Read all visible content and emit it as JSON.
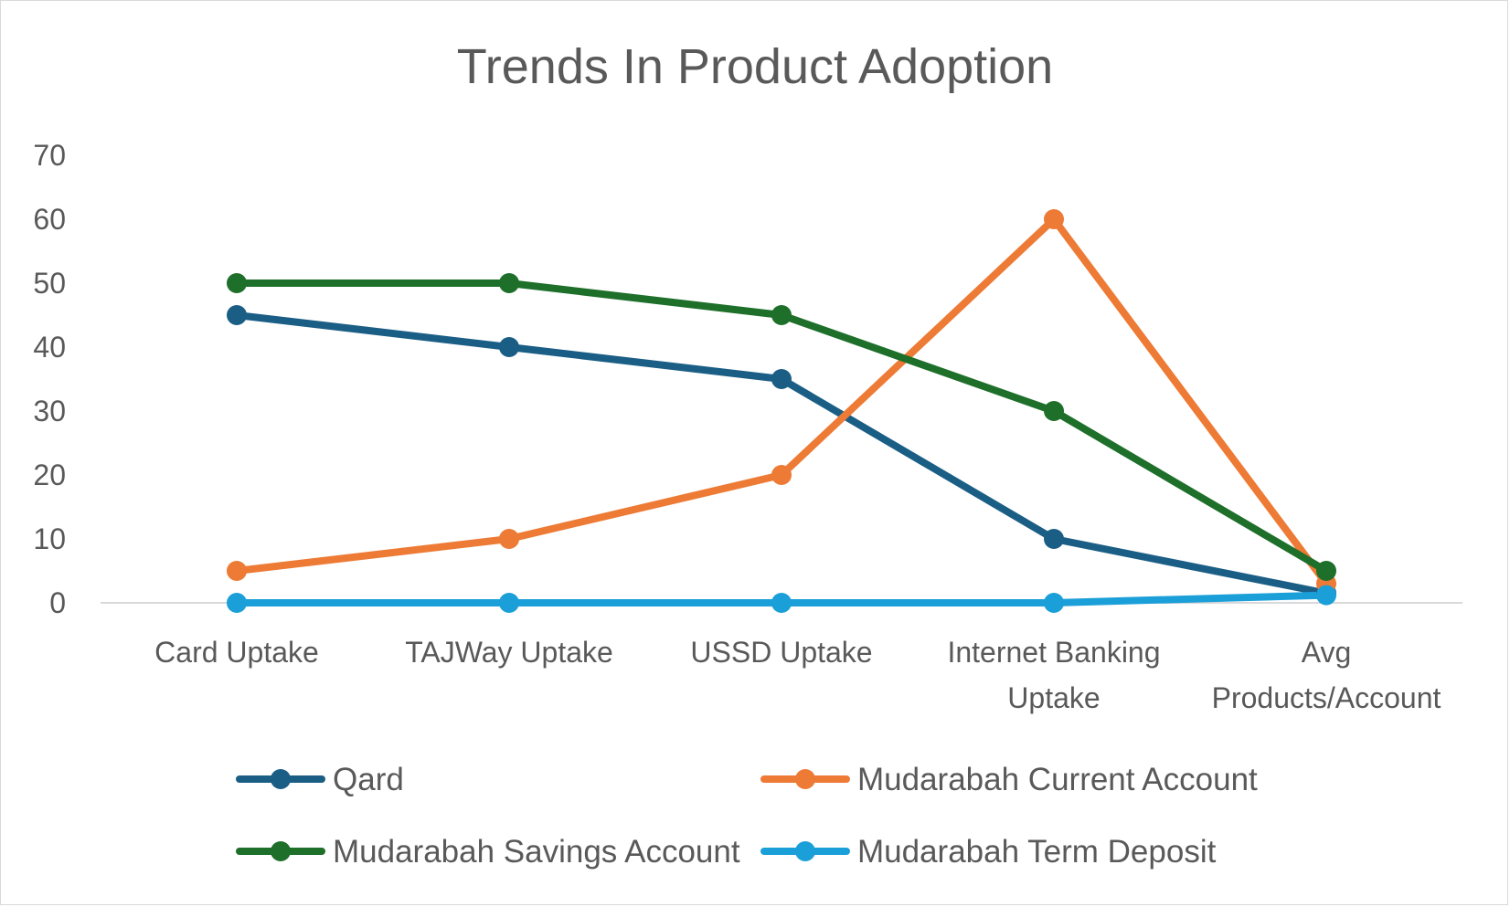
{
  "chart_data": {
    "type": "line",
    "title": "Trends In Product Adoption",
    "xlabel": "",
    "ylabel": "",
    "ylim": [
      0,
      70
    ],
    "yticks": [
      0,
      10,
      20,
      30,
      40,
      50,
      60,
      70
    ],
    "grid": false,
    "legend_position": "bottom",
    "categories": [
      [
        "Card Uptake"
      ],
      [
        "TAJWay Uptake"
      ],
      [
        "USSD Uptake"
      ],
      [
        "Internet Banking",
        "Uptake"
      ],
      [
        "Avg",
        "Products/Account"
      ]
    ],
    "series": [
      {
        "name": "Qard",
        "color": "#1b5e85",
        "values": [
          45,
          40,
          35,
          10,
          1.5
        ]
      },
      {
        "name": "Mudarabah Current Account",
        "color": "#ed7a35",
        "values": [
          5,
          10,
          20,
          60,
          3
        ]
      },
      {
        "name": "Mudarabah Savings Account",
        "color": "#1e6f2a",
        "values": [
          50,
          50,
          45,
          30,
          5
        ]
      },
      {
        "name": "Mudarabah Term Deposit",
        "color": "#1b9fd8",
        "values": [
          0,
          0,
          0,
          0,
          1.2
        ]
      }
    ]
  }
}
